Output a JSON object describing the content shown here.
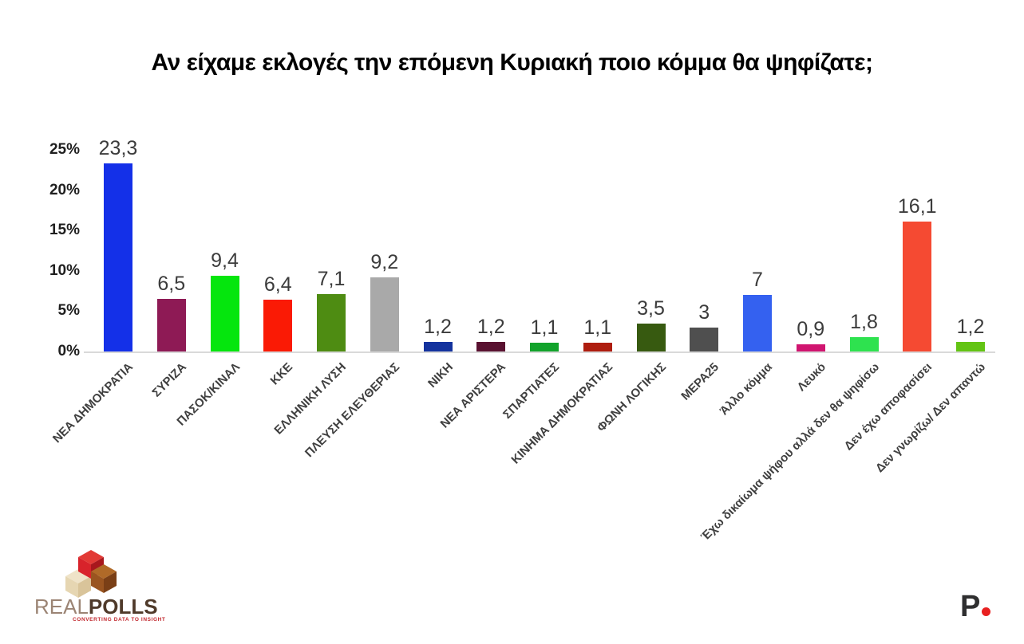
{
  "chart_data": {
    "type": "bar",
    "title": "Αν είχαμε εκλογές την επόμενη Κυριακή ποιο κόμμα θα ψηφίζατε;",
    "xlabel": "",
    "ylabel": "",
    "ylim": [
      0,
      25
    ],
    "grid": false,
    "legend": false,
    "y_ticks": [
      {
        "value": 0,
        "label": "0%"
      },
      {
        "value": 5,
        "label": "5%"
      },
      {
        "value": 10,
        "label": "10%"
      },
      {
        "value": 15,
        "label": "15%"
      },
      {
        "value": 20,
        "label": "20%"
      },
      {
        "value": 25,
        "label": "25%"
      }
    ],
    "bars": [
      {
        "category": "ΝΕΑ ΔΗΜΟΚΡΑΤΙΑ",
        "value": 23.3,
        "label": "23,3",
        "color": "#1430e8"
      },
      {
        "category": "ΣΥΡΙΖΑ",
        "value": 6.5,
        "label": "6,5",
        "color": "#8e1a55"
      },
      {
        "category": "ΠΑΣΟΚ/ΚΙΝΑΛ",
        "value": 9.4,
        "label": "9,4",
        "color": "#05e60d"
      },
      {
        "category": "ΚΚΕ",
        "value": 6.4,
        "label": "6,4",
        "color": "#fa1a05"
      },
      {
        "category": "ΕΛΛΗΝΙΚΗ ΛΥΣΗ",
        "value": 7.1,
        "label": "7,1",
        "color": "#4e8c12"
      },
      {
        "category": "ΠΛΕΥΣΗ ΕΛΕΥΘΕΡΙΑΣ",
        "value": 9.2,
        "label": "9,2",
        "color": "#a9a9a9"
      },
      {
        "category": "ΝΙΚΗ",
        "value": 1.2,
        "label": "1,2",
        "color": "#14339e"
      },
      {
        "category": "ΝΕΑ ΑΡΙΣΤΕΡΑ",
        "value": 1.2,
        "label": "1,2",
        "color": "#5a1231"
      },
      {
        "category": "ΣΠΑΡΤΙΑΤΕΣ",
        "value": 1.1,
        "label": "1,1",
        "color": "#12a32b"
      },
      {
        "category": "ΚΙΝΗΜΑ ΔΗΜΟΚΡΑΤΙΑΣ",
        "value": 1.1,
        "label": "1,1",
        "color": "#ae1d0f"
      },
      {
        "category": "ΦΩΝΗ ΛΟΓΙΚΗΣ",
        "value": 3.5,
        "label": "3,5",
        "color": "#375a10"
      },
      {
        "category": "ΜΕΡΑ25",
        "value": 3,
        "label": "3",
        "color": "#4f4f4f"
      },
      {
        "category": "Άλλο κόμμα",
        "value": 7,
        "label": "7",
        "color": "#3461f0"
      },
      {
        "category": "Λευκό",
        "value": 0.9,
        "label": "0,9",
        "color": "#d01570"
      },
      {
        "category": "Έχω δικαίωμα ψήφου αλλά δεν θα ψηφίσω",
        "value": 1.8,
        "label": "1,8",
        "color": "#2ee24f"
      },
      {
        "category": "Δεν έχω αποφασίσει",
        "value": 16.1,
        "label": "16,1",
        "color": "#f54a32"
      },
      {
        "category": "Δεν γνωρίζω/ Δεν απαντώ",
        "value": 1.2,
        "label": "1,2",
        "color": "#63c414"
      }
    ]
  },
  "branding": {
    "realpolls": {
      "name_light": "REAL",
      "name_bold": "POLLS",
      "name_light_color": "#9b8474",
      "name_bold_color": "#4f3a2a",
      "tagline": "CONVERTING DATA TO INSIGHT",
      "tagline_color": "#c1272d",
      "cube_red": "#d8232b",
      "cube_red_dark": "#a8171d",
      "cube_red_top": "#e23a35",
      "cube_brown": "#9a5520",
      "cube_brown_dark": "#7a3f16",
      "cube_brown_top": "#b06a28",
      "cube_cream": "#e6d6b2",
      "cube_cream_dark": "#d9c49a",
      "cube_cream_top": "#efe3c8"
    },
    "p_logo": {
      "letter": "P",
      "letter_color": "#2f2f30",
      "dot_color": "#e82020"
    }
  }
}
